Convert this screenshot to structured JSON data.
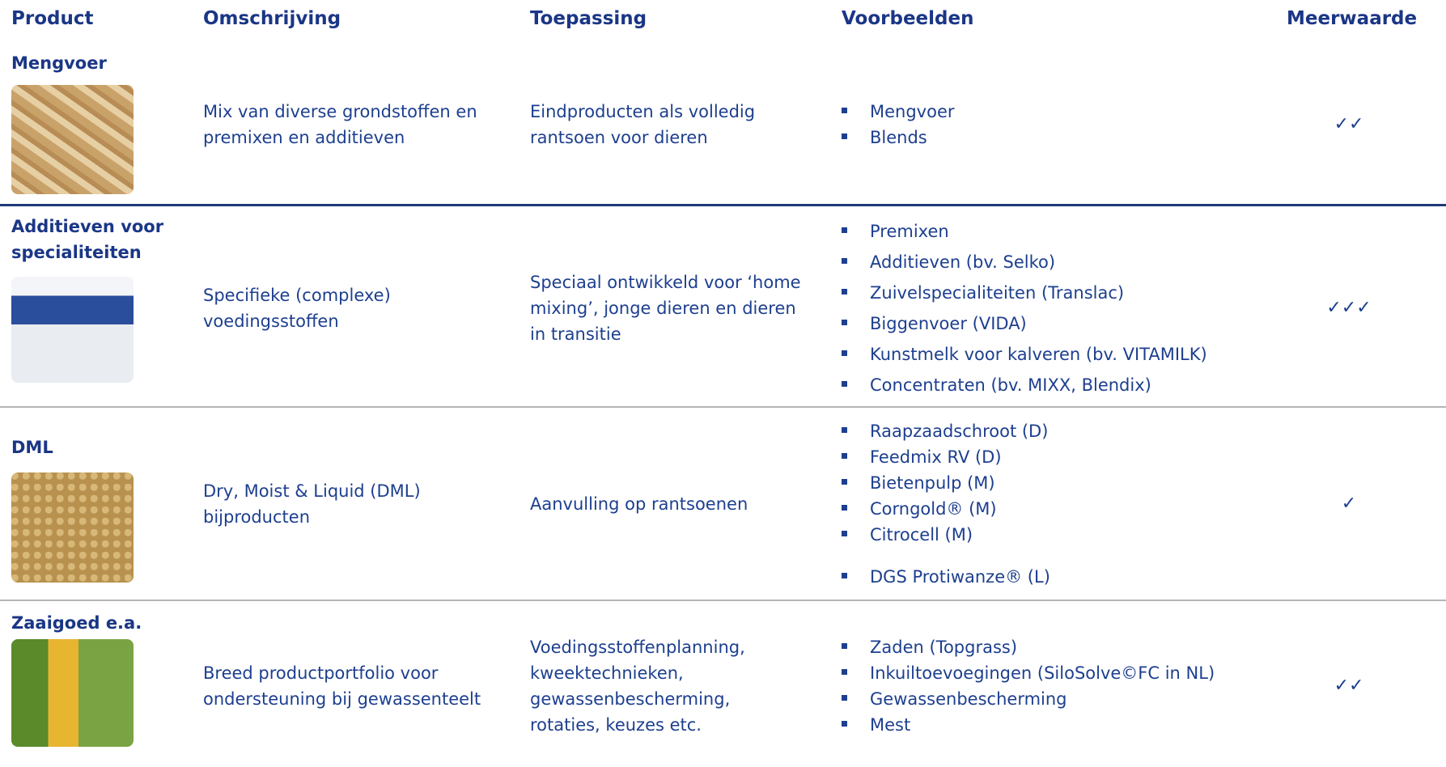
{
  "header": {
    "columns": [
      "Product",
      "Omschrijving",
      "Toepassing",
      "Voorbeelden",
      "Meerwaarde"
    ]
  },
  "rows": [
    {
      "product": "Mengvoer",
      "description": [
        "Mix van diverse grondstoffen en",
        "premixen en additieven"
      ],
      "application": [
        "Eindproducten als volledig",
        "rantsoen voor dieren"
      ],
      "examples": [
        "Mengvoer",
        "Blends"
      ],
      "value": "✓✓"
    },
    {
      "product": "Additieven voor specialiteiten",
      "description": [
        "Specifieke (complexe)",
        "voedingsstoffen"
      ],
      "application": [
        "Speciaal ontwikkeld voor ‘home",
        "mixing’, jonge dieren en dieren",
        "in transitie"
      ],
      "examples": [
        "Premixen",
        "Additieven (bv. Selko)",
        "Zuivelspecialiteiten (Translac)",
        "Biggenvoer (VIDA)",
        "Kunstmelk voor kalveren (bv. VITAMILK)",
        "Concentraten (bv. MIXX, Blendix)"
      ],
      "value": "✓✓✓"
    },
    {
      "product": "DML",
      "description": [
        "Dry, Moist & Liquid (DML)",
        "bijproducten"
      ],
      "application": [
        "Aanvulling op rantsoenen"
      ],
      "examples": [
        "Raapzaadschroot (D)",
        "Feedmix RV (D)",
        "Bietenpulp (M)",
        "Corngold® (M)",
        "Citrocell (M)",
        "DGS  Protiwanze® (L)"
      ],
      "value": "✓"
    },
    {
      "product": "Zaaigoed e.a.",
      "description": [
        "Breed productportfolio voor",
        "ondersteuning bij gewassenteelt"
      ],
      "application": [
        "Voedingsstoffenplanning,",
        "kweektechnieken,",
        "gewassenbescherming,",
        "rotaties, keuzes etc."
      ],
      "examples": [
        "Zaden (Topgrass)",
        "Inkuiltoevoegingen (SiloSolve©FC in NL)",
        "Gewassenbescherming",
        "Mest"
      ],
      "value": "✓✓"
    }
  ]
}
